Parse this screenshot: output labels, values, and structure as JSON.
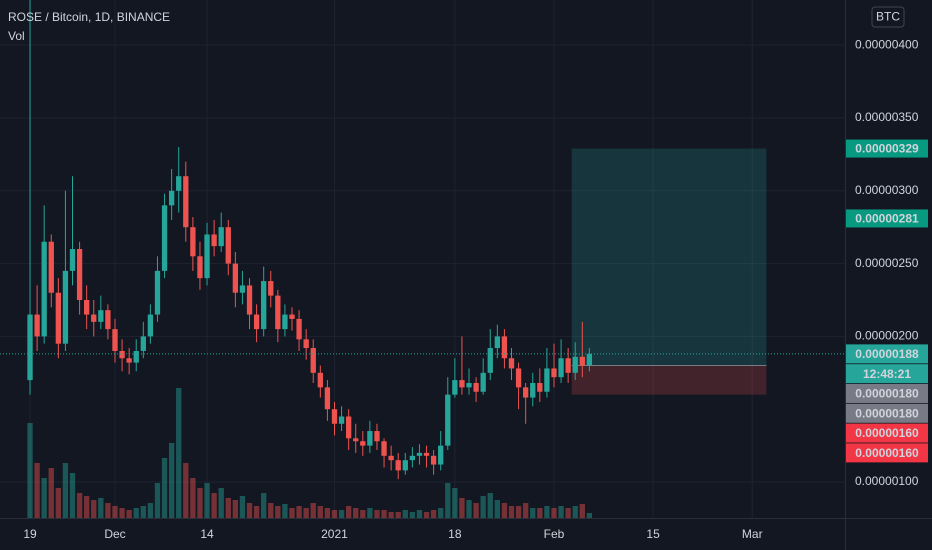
{
  "chart_data": {
    "type": "candlestick",
    "title": "ROSE / Bitcoin, 1D, BINANCE",
    "volume_label": "Vol",
    "currency": "BTC",
    "up_color": "#26a69a",
    "down_color": "#ef5350",
    "ohlc": [
      [
        1.7e-06,
        5.5e-06,
        1.6e-06,
        2.15e-06
      ],
      [
        2.15e-06,
        2.35e-06,
        1.9e-06,
        2e-06
      ],
      [
        2e-06,
        2.9e-06,
        1.95e-06,
        2.65e-06
      ],
      [
        2.65e-06,
        2.7e-06,
        2.2e-06,
        2.3e-06
      ],
      [
        2.3e-06,
        2.4e-06,
        1.85e-06,
        1.95e-06
      ],
      [
        1.95e-06,
        3e-06,
        1.9e-06,
        2.45e-06
      ],
      [
        2.45e-06,
        3.1e-06,
        2.35e-06,
        2.6e-06
      ],
      [
        2.6e-06,
        2.65e-06,
        2.15e-06,
        2.25e-06
      ],
      [
        2.25e-06,
        2.35e-06,
        2.05e-06,
        2.15e-06
      ],
      [
        2.15e-06,
        2.25e-06,
        2e-06,
        2.1e-06
      ],
      [
        2.1e-06,
        2.28e-06,
        2.05e-06,
        2.18e-06
      ],
      [
        2.18e-06,
        2.22e-06,
        1.98e-06,
        2.05e-06
      ],
      [
        2.05e-06,
        2.12e-06,
        1.82e-06,
        1.9e-06
      ],
      [
        1.9e-06,
        1.98e-06,
        1.76e-06,
        1.85e-06
      ],
      [
        1.85e-06,
        1.92e-06,
        1.74e-06,
        1.82e-06
      ],
      [
        1.82e-06,
        1.98e-06,
        1.76e-06,
        1.9e-06
      ],
      [
        1.9e-06,
        2.1e-06,
        1.85e-06,
        2e-06
      ],
      [
        2e-06,
        2.22e-06,
        1.95e-06,
        2.15e-06
      ],
      [
        2.15e-06,
        2.55e-06,
        2.1e-06,
        2.45e-06
      ],
      [
        2.45e-06,
        2.98e-06,
        2.4e-06,
        2.9e-06
      ],
      [
        2.9e-06,
        3.15e-06,
        2.8e-06,
        3e-06
      ],
      [
        3e-06,
        3.3e-06,
        2.85e-06,
        3.1e-06
      ],
      [
        3.1e-06,
        3.2e-06,
        2.65e-06,
        2.75e-06
      ],
      [
        2.75e-06,
        2.82e-06,
        2.45e-06,
        2.55e-06
      ],
      [
        2.55e-06,
        2.65e-06,
        2.32e-06,
        2.4e-06
      ],
      [
        2.4e-06,
        2.78e-06,
        2.35e-06,
        2.7e-06
      ],
      [
        2.7e-06,
        2.8e-06,
        2.55e-06,
        2.62e-06
      ],
      [
        2.62e-06,
        2.85e-06,
        2.58e-06,
        2.75e-06
      ],
      [
        2.75e-06,
        2.8e-06,
        2.42e-06,
        2.5e-06
      ],
      [
        2.5e-06,
        2.58e-06,
        2.2e-06,
        2.3e-06
      ],
      [
        2.3e-06,
        2.45e-06,
        2.22e-06,
        2.35e-06
      ],
      [
        2.35e-06,
        2.4e-06,
        2.05e-06,
        2.15e-06
      ],
      [
        2.15e-06,
        2.22e-06,
        1.96e-06,
        2.05e-06
      ],
      [
        2.05e-06,
        2.48e-06,
        2e-06,
        2.38e-06
      ],
      [
        2.38e-06,
        2.45e-06,
        2.2e-06,
        2.28e-06
      ],
      [
        2.28e-06,
        2.32e-06,
        1.96e-06,
        2.05e-06
      ],
      [
        2.05e-06,
        2.22e-06,
        2e-06,
        2.15e-06
      ],
      [
        2.15e-06,
        2.2e-06,
        2.04e-06,
        2.12e-06
      ],
      [
        2.12e-06,
        2.18e-06,
        1.9e-06,
        1.98e-06
      ],
      [
        1.98e-06,
        2.05e-06,
        1.84e-06,
        1.92e-06
      ],
      [
        1.92e-06,
        1.98e-06,
        1.68e-06,
        1.75e-06
      ],
      [
        1.75e-06,
        1.8e-06,
        1.58e-06,
        1.65e-06
      ],
      [
        1.65e-06,
        1.7e-06,
        1.42e-06,
        1.5e-06
      ],
      [
        1.5e-06,
        1.55e-06,
        1.32e-06,
        1.4e-06
      ],
      [
        1.4e-06,
        1.52e-06,
        1.35e-06,
        1.45e-06
      ],
      [
        1.45e-06,
        1.5e-06,
        1.22e-06,
        1.3e-06
      ],
      [
        1.3e-06,
        1.4e-06,
        1.2e-06,
        1.28e-06
      ],
      [
        1.28e-06,
        1.35e-06,
        1.18e-06,
        1.25e-06
      ],
      [
        1.25e-06,
        1.42e-06,
        1.2e-06,
        1.35e-06
      ],
      [
        1.35e-06,
        1.4e-06,
        1.22e-06,
        1.28e-06
      ],
      [
        1.28e-06,
        1.3e-06,
        1.1e-06,
        1.18e-06
      ],
      [
        1.18e-06,
        1.25e-06,
        1.08e-06,
        1.15e-06
      ],
      [
        1.15e-06,
        1.2e-06,
        1.02e-06,
        1.08e-06
      ],
      [
        1.08e-06,
        1.2e-06,
        1.05e-06,
        1.15e-06
      ],
      [
        1.15e-06,
        1.24e-06,
        1.1e-06,
        1.18e-06
      ],
      [
        1.18e-06,
        1.26e-06,
        1.12e-06,
        1.2e-06
      ],
      [
        1.2e-06,
        1.25e-06,
        1.1e-06,
        1.18e-06
      ],
      [
        1.18e-06,
        1.22e-06,
        1.05e-06,
        1.12e-06
      ],
      [
        1.12e-06,
        1.35e-06,
        1.08e-06,
        1.25e-06
      ],
      [
        1.25e-06,
        1.72e-06,
        1.22e-06,
        1.6e-06
      ],
      [
        1.6e-06,
        1.85e-06,
        1.58e-06,
        1.7e-06
      ],
      [
        1.7e-06,
        2e-06,
        1.6e-06,
        1.65e-06
      ],
      [
        1.65e-06,
        1.78e-06,
        1.6e-06,
        1.68e-06
      ],
      [
        1.68e-06,
        1.72e-06,
        1.55e-06,
        1.62e-06
      ],
      [
        1.62e-06,
        1.85e-06,
        1.6e-06,
        1.75e-06
      ],
      [
        1.75e-06,
        2.05e-06,
        1.7e-06,
        1.92e-06
      ],
      [
        1.92e-06,
        2.08e-06,
        1.85e-06,
        2e-06
      ],
      [
        2e-06,
        2.05e-06,
        1.78e-06,
        1.85e-06
      ],
      [
        1.85e-06,
        1.92e-06,
        1.7e-06,
        1.78e-06
      ],
      [
        1.78e-06,
        1.82e-06,
        1.5e-06,
        1.65e-06
      ],
      [
        1.65e-06,
        1.68e-06,
        1.4e-06,
        1.58e-06
      ],
      [
        1.58e-06,
        1.75e-06,
        1.52e-06,
        1.68e-06
      ],
      [
        1.68e-06,
        1.78e-06,
        1.55e-06,
        1.62e-06
      ],
      [
        1.62e-06,
        1.92e-06,
        1.58e-06,
        1.78e-06
      ],
      [
        1.78e-06,
        1.95e-06,
        1.65e-06,
        1.72e-06
      ],
      [
        1.72e-06,
        1.98e-06,
        1.68e-06,
        1.85e-06
      ],
      [
        1.85e-06,
        1.92e-06,
        1.68e-06,
        1.75e-06
      ],
      [
        1.75e-06,
        1.96e-06,
        1.7e-06,
        1.86e-06
      ],
      [
        1.86e-06,
        2.1e-06,
        1.72e-06,
        1.8e-06
      ],
      [
        1.8e-06,
        1.92e-06,
        1.76e-06,
        1.88e-06
      ]
    ],
    "volume": [
      95,
      55,
      40,
      50,
      30,
      55,
      45,
      25,
      22,
      18,
      20,
      15,
      12,
      10,
      8,
      10,
      12,
      15,
      35,
      60,
      75,
      130,
      55,
      40,
      30,
      35,
      25,
      30,
      20,
      18,
      22,
      15,
      12,
      25,
      15,
      12,
      14,
      10,
      12,
      10,
      15,
      12,
      10,
      8,
      8,
      12,
      10,
      8,
      10,
      8,
      8,
      6,
      6,
      8,
      6,
      8,
      6,
      8,
      10,
      35,
      30,
      20,
      18,
      15,
      22,
      25,
      18,
      15,
      12,
      12,
      15,
      10,
      10,
      12,
      10,
      12,
      10,
      12,
      14,
      5
    ],
    "xlim": [
      -4.24,
      115.1
    ],
    "xticks": [
      {
        "value": 0,
        "label": "19"
      },
      {
        "value": 12,
        "label": "Dec"
      },
      {
        "value": 25,
        "label": "14"
      },
      {
        "value": 43,
        "label": "2021"
      },
      {
        "value": 60,
        "label": "18"
      },
      {
        "value": 74,
        "label": "Feb"
      },
      {
        "value": 88,
        "label": "15"
      },
      {
        "value": 102,
        "label": "Mar"
      }
    ],
    "ylim": [
      7.53e-07,
      4.31e-06
    ],
    "yticks": [
      {
        "value": 1e-06,
        "label": "0.00000100"
      },
      {
        "value": 2e-06,
        "label": "0.00000200"
      },
      {
        "value": 2.5e-06,
        "label": "0.00000250"
      },
      {
        "value": 3e-06,
        "label": "0.00000300"
      },
      {
        "value": 3.5e-06,
        "label": "0.00000350"
      },
      {
        "value": 4e-06,
        "label": "0.00000400"
      }
    ],
    "grid": true,
    "position": {
      "x_range": [
        76.5,
        104
      ],
      "entry": 1.8e-06,
      "target": 3.29e-06,
      "stop": 1.6e-06
    },
    "price_labels": [
      {
        "value": 3.29e-06,
        "label": "0.00000329",
        "color": "#089981"
      },
      {
        "value": 2.81e-06,
        "label": "0.00000281",
        "color": "#089981"
      }
    ],
    "price_stack": [
      {
        "value": 1.88e-06,
        "label": "0.00000188",
        "color": "#26a69a"
      },
      {
        "label": "12:48:21",
        "color": "#26a69a"
      },
      {
        "value": 1.8e-06,
        "label": "0.00000180",
        "color": "#787b86"
      },
      {
        "value": 1.8e-06,
        "label": "0.00000180",
        "color": "#787b86"
      },
      {
        "value": 1.6e-06,
        "label": "0.00000160",
        "color": "#f23645"
      },
      {
        "value": 1.6e-06,
        "label": "0.00000160",
        "color": "#f23645"
      }
    ],
    "last_price": 1.88e-06
  }
}
